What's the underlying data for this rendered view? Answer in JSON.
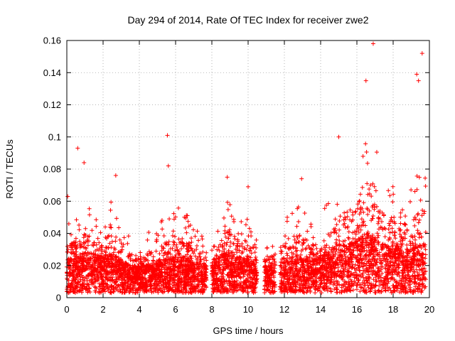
{
  "chart_data": {
    "type": "scatter",
    "title": "Day 294 of 2014, Rate Of TEC Index for receiver zwe2",
    "xlabel": "GPS time / hours",
    "ylabel": "ROTI / TECUs",
    "xlim": [
      0,
      20
    ],
    "ylim": [
      0,
      0.16
    ],
    "grid": true,
    "marker": "+",
    "series_color": "#ff0000",
    "x_ticks": [
      {
        "value": 0,
        "label": "0"
      },
      {
        "value": 2,
        "label": "2"
      },
      {
        "value": 4,
        "label": "4"
      },
      {
        "value": 6,
        "label": "6"
      },
      {
        "value": 8,
        "label": "8"
      },
      {
        "value": 10,
        "label": "10"
      },
      {
        "value": 12,
        "label": "12"
      },
      {
        "value": 14,
        "label": "14"
      },
      {
        "value": 16,
        "label": "16"
      },
      {
        "value": 18,
        "label": "18"
      },
      {
        "value": 20,
        "label": "20"
      }
    ],
    "y_ticks": [
      {
        "value": 0,
        "label": "0"
      },
      {
        "value": 0.02,
        "label": "0.02"
      },
      {
        "value": 0.04,
        "label": "0.04"
      },
      {
        "value": 0.06,
        "label": "0.06"
      },
      {
        "value": 0.08,
        "label": "0.08"
      },
      {
        "value": 0.1,
        "label": "0.1"
      },
      {
        "value": 0.12,
        "label": "0.12"
      },
      {
        "value": 0.14,
        "label": "0.14"
      },
      {
        "value": 0.16,
        "label": "0.16"
      }
    ],
    "x_range_covered": [
      0,
      19.8
    ],
    "data_gaps": [
      [
        7.7,
        8.0
      ],
      [
        10.5,
        10.9
      ],
      [
        11.5,
        11.75
      ]
    ],
    "notable_points": [
      {
        "x": 0.05,
        "y": 0.063
      },
      {
        "x": 0.6,
        "y": 0.093
      },
      {
        "x": 0.95,
        "y": 0.084
      },
      {
        "x": 2.7,
        "y": 0.076
      },
      {
        "x": 5.55,
        "y": 0.101
      },
      {
        "x": 5.6,
        "y": 0.082
      },
      {
        "x": 8.85,
        "y": 0.075
      },
      {
        "x": 10.0,
        "y": 0.069
      },
      {
        "x": 12.95,
        "y": 0.074
      },
      {
        "x": 15.0,
        "y": 0.1
      },
      {
        "x": 16.5,
        "y": 0.135
      },
      {
        "x": 16.9,
        "y": 0.158
      },
      {
        "x": 19.6,
        "y": 0.152
      },
      {
        "x": 19.4,
        "y": 0.135
      },
      {
        "x": 19.3,
        "y": 0.139
      }
    ],
    "envelope": [
      {
        "x": 0.0,
        "median": 0.015,
        "upper": 0.045
      },
      {
        "x": 0.5,
        "median": 0.014,
        "upper": 0.05
      },
      {
        "x": 1.0,
        "median": 0.017,
        "upper": 0.055
      },
      {
        "x": 1.5,
        "median": 0.016,
        "upper": 0.052
      },
      {
        "x": 2.0,
        "median": 0.015,
        "upper": 0.05
      },
      {
        "x": 2.5,
        "median": 0.016,
        "upper": 0.06
      },
      {
        "x": 3.0,
        "median": 0.014,
        "upper": 0.05
      },
      {
        "x": 3.5,
        "median": 0.012,
        "upper": 0.04
      },
      {
        "x": 4.0,
        "median": 0.011,
        "upper": 0.035
      },
      {
        "x": 4.5,
        "median": 0.012,
        "upper": 0.04
      },
      {
        "x": 5.0,
        "median": 0.013,
        "upper": 0.04
      },
      {
        "x": 5.5,
        "median": 0.014,
        "upper": 0.055
      },
      {
        "x": 6.0,
        "median": 0.015,
        "upper": 0.055
      },
      {
        "x": 6.5,
        "median": 0.015,
        "upper": 0.052
      },
      {
        "x": 7.0,
        "median": 0.013,
        "upper": 0.045
      },
      {
        "x": 7.5,
        "median": 0.012,
        "upper": 0.04
      },
      {
        "x": 8.2,
        "median": 0.013,
        "upper": 0.035
      },
      {
        "x": 8.5,
        "median": 0.016,
        "upper": 0.055
      },
      {
        "x": 9.0,
        "median": 0.017,
        "upper": 0.06
      },
      {
        "x": 9.5,
        "median": 0.015,
        "upper": 0.05
      },
      {
        "x": 10.0,
        "median": 0.014,
        "upper": 0.05
      },
      {
        "x": 11.0,
        "median": 0.011,
        "upper": 0.035
      },
      {
        "x": 11.9,
        "median": 0.013,
        "upper": 0.045
      },
      {
        "x": 12.5,
        "median": 0.015,
        "upper": 0.055
      },
      {
        "x": 13.0,
        "median": 0.016,
        "upper": 0.055
      },
      {
        "x": 13.5,
        "median": 0.014,
        "upper": 0.045
      },
      {
        "x": 14.0,
        "median": 0.015,
        "upper": 0.05
      },
      {
        "x": 14.5,
        "median": 0.017,
        "upper": 0.06
      },
      {
        "x": 15.0,
        "median": 0.02,
        "upper": 0.07
      },
      {
        "x": 15.5,
        "median": 0.02,
        "upper": 0.075
      },
      {
        "x": 16.0,
        "median": 0.022,
        "upper": 0.085
      },
      {
        "x": 16.5,
        "median": 0.025,
        "upper": 0.11
      },
      {
        "x": 17.0,
        "median": 0.024,
        "upper": 0.1
      },
      {
        "x": 17.5,
        "median": 0.02,
        "upper": 0.075
      },
      {
        "x": 18.0,
        "median": 0.02,
        "upper": 0.07
      },
      {
        "x": 18.5,
        "median": 0.018,
        "upper": 0.065
      },
      {
        "x": 19.0,
        "median": 0.018,
        "upper": 0.065
      },
      {
        "x": 19.5,
        "median": 0.02,
        "upper": 0.08
      },
      {
        "x": 19.8,
        "median": 0.02,
        "upper": 0.075
      }
    ]
  }
}
